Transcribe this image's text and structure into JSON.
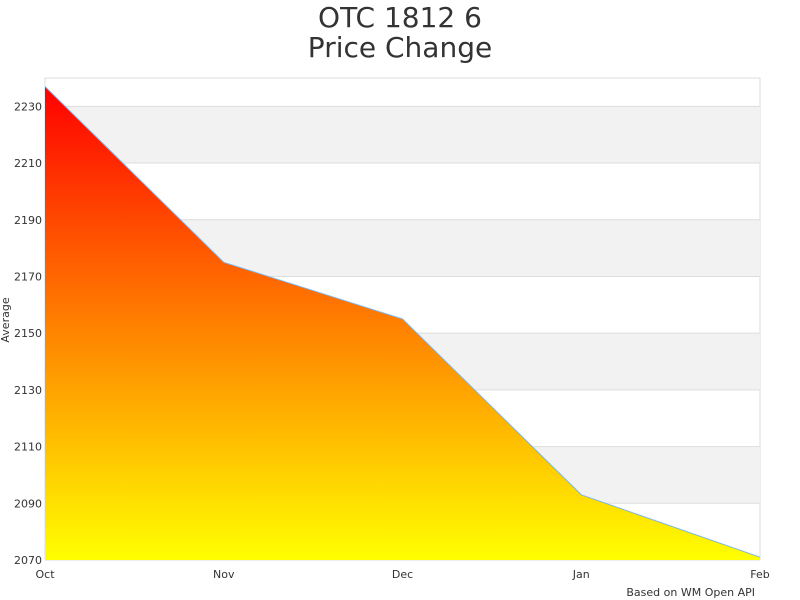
{
  "title_line1": "OTC 1812 6",
  "title_line2": "Price Change",
  "credit": "Based on WM Open API",
  "chart_data": {
    "type": "area",
    "title": "OTC 1812 6 Price Change",
    "xlabel": "",
    "ylabel": "Average",
    "categories": [
      "Oct",
      "Nov",
      "Dec",
      "Jan",
      "Feb"
    ],
    "values": [
      2237,
      2175,
      2155,
      2093,
      2071
    ],
    "ylim": [
      2070,
      2240
    ],
    "yticks": [
      2070,
      2090,
      2110,
      2130,
      2150,
      2170,
      2190,
      2210,
      2230
    ],
    "grid": true,
    "alternating_bands": true,
    "fill_gradient": {
      "top": "#ff0000",
      "bottom": "#ffff00"
    },
    "line_color": "#7cb5ec",
    "band_color": "#f2f2f2"
  }
}
